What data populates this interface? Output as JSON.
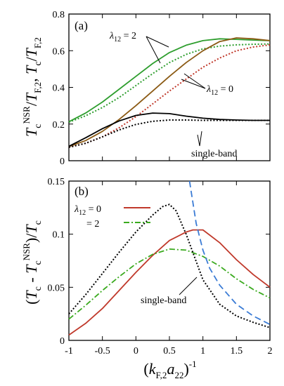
{
  "chart_data": [
    {
      "panel": "(a)",
      "type": "line",
      "ylabel": "T_c^NSR/T_F,2, T_c/T_F,2",
      "xlim": [
        -1,
        2
      ],
      "ylim": [
        0,
        0.8
      ],
      "yticks": [
        "0",
        "0.2",
        "0.4",
        "0.6",
        "0.8"
      ],
      "annotations": [
        "λ12 = 2",
        "λ12 = 0",
        "single-band"
      ],
      "series": [
        {
          "color": "#2e9e2e",
          "style": "solid",
          "x": [
            -1,
            -0.75,
            -0.5,
            -0.25,
            0,
            0.25,
            0.5,
            0.75,
            1,
            1.25,
            1.5,
            1.75,
            2
          ],
          "y": [
            0.213,
            0.26,
            0.32,
            0.39,
            0.46,
            0.53,
            0.59,
            0.63,
            0.655,
            0.665,
            0.662,
            0.658,
            0.655
          ]
        },
        {
          "color": "#2e9e2e",
          "style": "dotted",
          "x": [
            -1,
            -0.75,
            -0.5,
            -0.25,
            0,
            0.25,
            0.5,
            0.75,
            1,
            1.25,
            1.5,
            1.75,
            2
          ],
          "y": [
            0.21,
            0.245,
            0.29,
            0.345,
            0.41,
            0.475,
            0.535,
            0.58,
            0.61,
            0.625,
            0.632,
            0.635,
            0.637
          ]
        },
        {
          "color": "#8b5a14",
          "style": "solid",
          "x": [
            -1,
            -0.75,
            -0.5,
            -0.25,
            0,
            0.25,
            0.5,
            0.75,
            1,
            1.25,
            1.5,
            1.75,
            2
          ],
          "y": [
            0.077,
            0.11,
            0.16,
            0.225,
            0.3,
            0.38,
            0.46,
            0.535,
            0.6,
            0.65,
            0.67,
            0.665,
            0.655
          ]
        },
        {
          "color": "#c0392b",
          "style": "dotted",
          "x": [
            -1,
            -0.75,
            -0.5,
            -0.25,
            0,
            0.25,
            0.5,
            0.75,
            1,
            1.25,
            1.5,
            1.75,
            2
          ],
          "y": [
            0.073,
            0.095,
            0.13,
            0.18,
            0.24,
            0.31,
            0.38,
            0.445,
            0.51,
            0.56,
            0.6,
            0.62,
            0.632
          ]
        },
        {
          "color": "#000000",
          "style": "solid",
          "x": [
            -1,
            -0.75,
            -0.5,
            -0.25,
            0,
            0.25,
            0.5,
            0.75,
            1,
            1.25,
            1.5,
            1.75,
            2
          ],
          "y": [
            0.079,
            0.125,
            0.175,
            0.217,
            0.247,
            0.26,
            0.257,
            0.243,
            0.232,
            0.225,
            0.222,
            0.22,
            0.22
          ]
        },
        {
          "color": "#000000",
          "style": "dotted",
          "x": [
            -1,
            -0.75,
            -0.5,
            -0.25,
            0,
            0.25,
            0.5,
            0.75,
            1,
            1.25,
            1.5,
            1.75,
            2
          ],
          "y": [
            0.073,
            0.095,
            0.13,
            0.168,
            0.198,
            0.215,
            0.222,
            0.222,
            0.22,
            0.22,
            0.22,
            0.22,
            0.22
          ]
        }
      ]
    },
    {
      "panel": "(b)",
      "type": "line",
      "xlabel": "(k_F,2 a_22)^-1",
      "ylabel": "(T_c - T_c^NSR)/T_c",
      "xlim": [
        -1,
        2
      ],
      "ylim": [
        0,
        0.15
      ],
      "xticks": [
        "-1",
        "-0.5",
        "0",
        "0.5",
        "1",
        "1.5",
        "2"
      ],
      "yticks": [
        "0",
        "0.05",
        "0.1",
        "0.15"
      ],
      "legend": {
        "labels": [
          "λ12 = 0",
          "= 2"
        ],
        "placement": "upper-left"
      },
      "annotations": [
        "single-band"
      ],
      "series": [
        {
          "color": "#c0392b",
          "style": "solid",
          "x": [
            -1,
            -0.75,
            -0.5,
            -0.25,
            0,
            0.25,
            0.5,
            0.75,
            0.85,
            1,
            1.25,
            1.5,
            1.75,
            2
          ],
          "y": [
            0.005,
            0.016,
            0.03,
            0.047,
            0.064,
            0.08,
            0.094,
            0.102,
            0.104,
            0.104,
            0.092,
            0.076,
            0.062,
            0.05
          ]
        },
        {
          "color": "#3aaa1e",
          "style": "dashdot",
          "x": [
            -1,
            -0.75,
            -0.5,
            -0.25,
            0,
            0.25,
            0.5,
            0.75,
            1,
            1.25,
            1.5,
            1.75,
            2
          ],
          "y": [
            0.02,
            0.033,
            0.047,
            0.06,
            0.072,
            0.081,
            0.086,
            0.085,
            0.079,
            0.07,
            0.058,
            0.048,
            0.04
          ]
        },
        {
          "color": "#000000",
          "style": "dotted",
          "x": [
            -1,
            -0.75,
            -0.5,
            -0.25,
            0,
            0.25,
            0.4,
            0.5,
            0.6,
            0.75,
            1,
            1.25,
            1.5,
            1.75,
            2
          ],
          "y": [
            0.025,
            0.043,
            0.063,
            0.083,
            0.102,
            0.118,
            0.126,
            0.128,
            0.122,
            0.1,
            0.057,
            0.034,
            0.023,
            0.017,
            0.012
          ]
        },
        {
          "color": "#3a7bd5",
          "style": "dashed",
          "x": [
            0.8,
            0.9,
            1.0,
            1.1,
            1.25,
            1.5,
            1.75,
            2
          ],
          "y": [
            0.15,
            0.11,
            0.085,
            0.068,
            0.052,
            0.034,
            0.023,
            0.015
          ]
        }
      ]
    }
  ]
}
